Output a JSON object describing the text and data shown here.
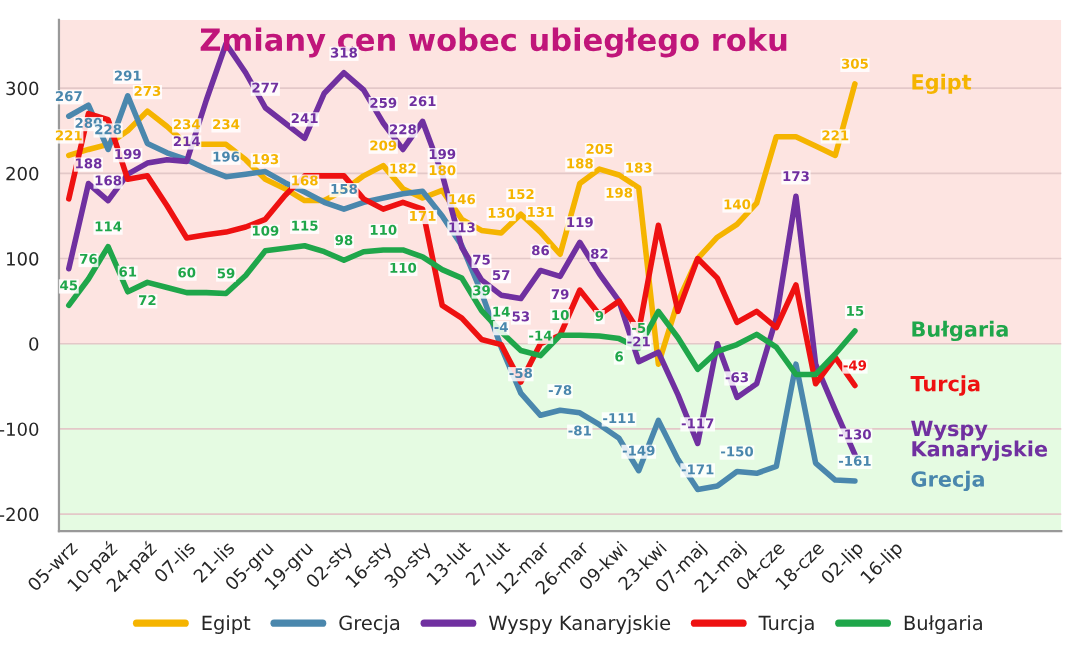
{
  "chart_data": {
    "type": "line",
    "title": "Zmiany cen wobec ubiegłego roku",
    "categories": [
      "05-wrz",
      null,
      "10-paź",
      null,
      "24-paź",
      null,
      "07-lis",
      null,
      "21-lis",
      null,
      "05-gru",
      null,
      "19-gru",
      null,
      "02-sty",
      null,
      "16-sty",
      null,
      "30-sty",
      null,
      "13-lut",
      null,
      "27-lut",
      null,
      "12-mar",
      null,
      "26-mar",
      null,
      "09-kwi",
      null,
      "23-kwi",
      null,
      "07-maj",
      null,
      "21-maj",
      null,
      "04-cze",
      null,
      "18-cze",
      null,
      "02-lip",
      null,
      "16-lip"
    ],
    "series": [
      {
        "name": "Egipt",
        "color": "#f5b400",
        "values": [
          221,
          228,
          234,
          250,
          273,
          255,
          234,
          234,
          234,
          216,
          193,
          182,
          168,
          168,
          180,
          197,
          209,
          182,
          171,
          180,
          146,
          133,
          130,
          152,
          131,
          105,
          188,
          205,
          198,
          183,
          -24,
          50,
          100,
          125,
          140,
          165,
          243,
          243,
          232,
          221,
          305,
          null,
          null
        ],
        "value_labels": [
          "221",
          null,
          null,
          null,
          "273",
          null,
          "234",
          null,
          "234",
          null,
          "193",
          null,
          "168",
          null,
          null,
          null,
          "209",
          "182",
          "171",
          "180",
          "146",
          null,
          "130",
          "152",
          "131",
          null,
          "188",
          "205",
          "198",
          "183",
          null,
          null,
          null,
          null,
          "140",
          null,
          null,
          null,
          null,
          "221",
          "305",
          null,
          null
        ]
      },
      {
        "name": "Grecja",
        "color": "#4a87ad",
        "values": [
          267,
          280,
          228,
          291,
          235,
          224,
          216,
          205,
          196,
          199,
          202,
          189,
          178,
          166,
          158,
          166,
          171,
          176,
          179,
          150,
          115,
          60,
          -4,
          -58,
          -84,
          -78,
          -81,
          -95,
          -111,
          -149,
          -90,
          -136,
          -171,
          -167,
          -150,
          -152,
          -144,
          -24,
          -140,
          -160,
          -161,
          null,
          null
        ],
        "value_labels": [
          "267",
          "280",
          "228",
          "291",
          null,
          null,
          null,
          null,
          "196",
          null,
          null,
          null,
          null,
          null,
          "158",
          null,
          null,
          null,
          null,
          null,
          null,
          null,
          "-4",
          "-58",
          null,
          "-78",
          "-81",
          null,
          "-111",
          "-149",
          null,
          null,
          "-171",
          null,
          "-150",
          null,
          null,
          null,
          null,
          null,
          "-161",
          null,
          null
        ]
      },
      {
        "name": "Wyspy Kanaryjskie",
        "color": "#7030a0",
        "values": [
          88,
          188,
          168,
          199,
          212,
          216,
          214,
          286,
          352,
          318,
          277,
          259,
          241,
          294,
          318,
          298,
          259,
          228,
          261,
          199,
          113,
          75,
          57,
          53,
          86,
          79,
          119,
          82,
          50,
          -21,
          -10,
          -60,
          -117,
          0,
          -63,
          -47,
          30,
          173,
          -24,
          -78,
          -130,
          null,
          null
        ],
        "value_labels": [
          null,
          "188",
          "168",
          "199",
          null,
          null,
          "214",
          null,
          null,
          null,
          "277",
          null,
          "241",
          null,
          "318",
          null,
          "259",
          "228",
          "261",
          "199",
          "113",
          "75",
          "57",
          "53",
          "86",
          "79",
          "119",
          "82",
          null,
          "-21",
          null,
          null,
          "-117",
          null,
          "-63",
          null,
          null,
          "173",
          null,
          null,
          "-130",
          null,
          null
        ]
      },
      {
        "name": "Turcja",
        "color": "#ee1111",
        "values": [
          170,
          270,
          263,
          193,
          197,
          162,
          124,
          128,
          131,
          137,
          146,
          174,
          197,
          197,
          197,
          170,
          158,
          166,
          158,
          45,
          30,
          5,
          -1,
          -45,
          0,
          10,
          63,
          34,
          50,
          15,
          139,
          38,
          100,
          77,
          25,
          38,
          19,
          69,
          -47,
          -16,
          -49,
          null,
          null
        ],
        "value_labels": [
          null,
          null,
          null,
          null,
          null,
          null,
          null,
          null,
          null,
          null,
          null,
          null,
          null,
          null,
          null,
          null,
          null,
          null,
          null,
          null,
          null,
          null,
          null,
          null,
          null,
          null,
          null,
          null,
          null,
          null,
          null,
          null,
          null,
          null,
          null,
          null,
          null,
          null,
          null,
          null,
          "-49",
          null,
          null
        ]
      },
      {
        "name": "Bułgaria",
        "color": "#1fa64a",
        "values": [
          45,
          76,
          114,
          61,
          72,
          66,
          60,
          60,
          59,
          80,
          109,
          112,
          115,
          108,
          98,
          108,
          110,
          110,
          102,
          87,
          77,
          39,
          14,
          -8,
          -14,
          10,
          10,
          9,
          6,
          -5,
          38,
          7,
          -30,
          -9,
          -1,
          11,
          -4,
          -36,
          -36,
          -12,
          15,
          null,
          null
        ],
        "value_labels": [
          "45",
          "76",
          "114",
          "61",
          "72",
          null,
          "60",
          null,
          "59",
          null,
          "109",
          null,
          "115",
          null,
          "98",
          null,
          "110",
          "110",
          null,
          null,
          null,
          "39",
          "14",
          null,
          "-14",
          "10",
          null,
          "9",
          "6",
          "-5",
          null,
          null,
          null,
          null,
          null,
          null,
          null,
          null,
          null,
          null,
          "15",
          null,
          null
        ]
      }
    ],
    "ylim": [
      -220,
      380
    ],
    "yticks": [
      -200,
      -100,
      0,
      100,
      200,
      300
    ],
    "grid": "y",
    "legend": "bottom",
    "bands": [
      {
        "axis": "y",
        "from": 0,
        "to": 380,
        "color": "#fde4e1"
      },
      {
        "axis": "y",
        "from": -220,
        "to": 0,
        "color": "#e5fbe2"
      }
    ],
    "annotations": [
      "Egipt",
      "Grecja",
      "Wyspy\nKanaryjskie",
      "Turcja",
      "Bułgaria"
    ]
  }
}
